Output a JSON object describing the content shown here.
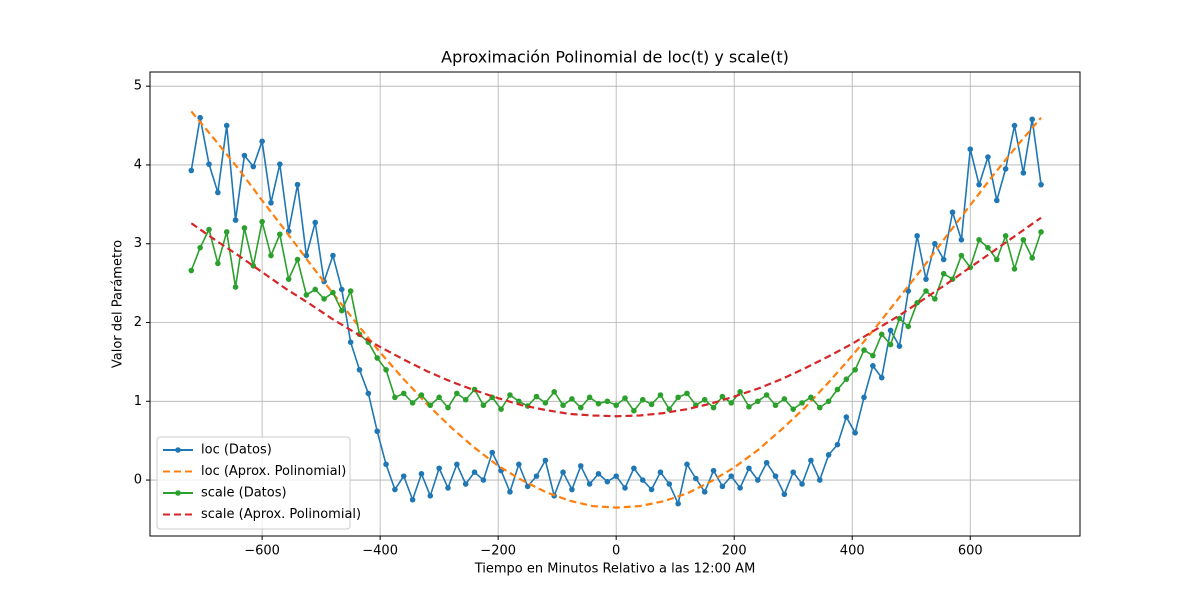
{
  "chart_data": {
    "type": "line",
    "title": "Aproximación Polinomial de loc(t) y scale(t)",
    "xlabel": "Tiempo en Minutos Relativo a las 12:00 AM",
    "ylabel": "Valor del Parámetro",
    "xlim": [
      -790,
      786
    ],
    "ylim": [
      -0.71,
      5.18
    ],
    "xticks": [
      {
        "value": -600,
        "label": "−600"
      },
      {
        "value": -400,
        "label": "−400"
      },
      {
        "value": -200,
        "label": "−200"
      },
      0,
      200,
      400,
      600
    ],
    "yticks": [
      0,
      1,
      2,
      3,
      4,
      5
    ],
    "grid": true,
    "legend": "lower left",
    "series": [
      {
        "name": "loc (Datos)",
        "color": "#1f77b4",
        "marker": "o",
        "linestyle": "-",
        "x": [
          -720,
          -705,
          -690,
          -675,
          -660,
          -645,
          -630,
          -615,
          -600,
          -585,
          -570,
          -555,
          -540,
          -525,
          -510,
          -495,
          -480,
          -465,
          -450,
          -435,
          -420,
          -405,
          -390,
          -375,
          -360,
          -345,
          -330,
          -315,
          -300,
          -285,
          -270,
          -255,
          -240,
          -225,
          -210,
          -195,
          -180,
          -165,
          -150,
          -135,
          -120,
          -105,
          -90,
          -75,
          -60,
          -45,
          -30,
          -15,
          0,
          15,
          30,
          45,
          60,
          75,
          90,
          105,
          120,
          135,
          150,
          165,
          180,
          195,
          210,
          225,
          240,
          255,
          270,
          285,
          300,
          315,
          330,
          345,
          360,
          375,
          390,
          405,
          420,
          435,
          450,
          465,
          480,
          495,
          510,
          525,
          540,
          555,
          570,
          585,
          600,
          615,
          630,
          645,
          660,
          675,
          690,
          705,
          720
        ],
        "values": [
          3.93,
          4.6,
          4.01,
          3.65,
          4.5,
          3.3,
          4.12,
          3.98,
          4.3,
          3.52,
          4.01,
          3.16,
          3.75,
          2.85,
          3.27,
          2.52,
          2.85,
          2.42,
          1.75,
          1.4,
          1.1,
          0.62,
          0.2,
          -0.12,
          0.05,
          -0.25,
          0.08,
          -0.2,
          0.15,
          -0.1,
          0.2,
          -0.05,
          0.1,
          0.0,
          0.35,
          0.12,
          -0.15,
          0.2,
          -0.08,
          0.05,
          0.25,
          -0.2,
          0.1,
          -0.12,
          0.18,
          -0.05,
          0.08,
          -0.02,
          0.05,
          -0.1,
          0.15,
          0.0,
          -0.12,
          0.1,
          -0.05,
          -0.3,
          0.2,
          0.02,
          -0.15,
          0.12,
          -0.08,
          0.05,
          -0.1,
          0.15,
          0.0,
          0.22,
          0.05,
          -0.18,
          0.1,
          -0.05,
          0.25,
          0.0,
          0.32,
          0.45,
          0.8,
          0.6,
          1.05,
          1.45,
          1.3,
          1.9,
          1.7,
          2.4,
          3.1,
          2.55,
          3.0,
          2.8,
          3.4,
          3.05,
          4.2,
          3.75,
          4.1,
          3.55,
          3.95,
          4.5,
          3.9,
          4.58,
          3.75
        ]
      },
      {
        "name": "loc (Aprox. Polinomial)",
        "color": "#ff7f0e",
        "marker": "none",
        "linestyle": "--",
        "x": [
          -720,
          -680,
          -640,
          -600,
          -560,
          -520,
          -480,
          -440,
          -400,
          -360,
          -320,
          -280,
          -240,
          -200,
          -160,
          -120,
          -80,
          -40,
          0,
          40,
          80,
          120,
          160,
          200,
          240,
          280,
          320,
          360,
          400,
          440,
          480,
          520,
          560,
          600,
          640,
          680,
          720
        ],
        "values": [
          4.68,
          4.32,
          3.95,
          3.55,
          3.16,
          2.76,
          2.37,
          1.99,
          1.62,
          1.28,
          0.96,
          0.67,
          0.41,
          0.18,
          0.0,
          -0.15,
          -0.26,
          -0.33,
          -0.35,
          -0.33,
          -0.27,
          -0.17,
          -0.02,
          0.16,
          0.38,
          0.64,
          0.92,
          1.24,
          1.58,
          1.94,
          2.32,
          2.7,
          3.1,
          3.49,
          3.88,
          4.25,
          4.6
        ]
      },
      {
        "name": "scale (Datos)",
        "color": "#2ca02c",
        "marker": "o",
        "linestyle": "-",
        "x": [
          -720,
          -705,
          -690,
          -675,
          -660,
          -645,
          -630,
          -615,
          -600,
          -585,
          -570,
          -555,
          -540,
          -525,
          -510,
          -495,
          -480,
          -465,
          -450,
          -435,
          -420,
          -405,
          -390,
          -375,
          -360,
          -345,
          -330,
          -315,
          -300,
          -285,
          -270,
          -255,
          -240,
          -225,
          -210,
          -195,
          -180,
          -165,
          -150,
          -135,
          -120,
          -105,
          -90,
          -75,
          -60,
          -45,
          -30,
          -15,
          0,
          15,
          30,
          45,
          60,
          75,
          90,
          105,
          120,
          135,
          150,
          165,
          180,
          195,
          210,
          225,
          240,
          255,
          270,
          285,
          300,
          315,
          330,
          345,
          360,
          375,
          390,
          405,
          420,
          435,
          450,
          465,
          480,
          495,
          510,
          525,
          540,
          555,
          570,
          585,
          600,
          615,
          630,
          645,
          660,
          675,
          690,
          705,
          720
        ],
        "values": [
          2.66,
          2.95,
          3.18,
          2.75,
          3.15,
          2.45,
          3.2,
          2.72,
          3.28,
          2.85,
          3.12,
          2.55,
          2.8,
          2.35,
          2.42,
          2.3,
          2.38,
          2.15,
          2.4,
          1.85,
          1.75,
          1.55,
          1.4,
          1.05,
          1.1,
          0.98,
          1.08,
          0.95,
          1.05,
          0.92,
          1.1,
          1.02,
          1.15,
          0.95,
          1.05,
          0.9,
          1.08,
          1.0,
          0.94,
          1.06,
          0.98,
          1.12,
          0.95,
          1.03,
          0.92,
          1.05,
          0.97,
          1.0,
          0.95,
          1.04,
          0.88,
          1.02,
          0.96,
          1.08,
          0.9,
          1.05,
          1.1,
          0.95,
          1.02,
          0.92,
          1.06,
          0.98,
          1.12,
          0.93,
          1.0,
          1.08,
          0.95,
          1.03,
          0.9,
          0.98,
          1.05,
          0.92,
          1.0,
          1.15,
          1.28,
          1.4,
          1.65,
          1.58,
          1.85,
          1.72,
          2.05,
          1.95,
          2.25,
          2.4,
          2.3,
          2.62,
          2.55,
          2.85,
          2.7,
          3.05,
          2.95,
          2.8,
          3.1,
          2.68,
          3.05,
          2.82,
          3.15
        ]
      },
      {
        "name": "scale (Aprox. Polinomial)",
        "color": "#d62728",
        "marker": "none",
        "linestyle": "--",
        "x": [
          -720,
          -680,
          -640,
          -600,
          -560,
          -520,
          -480,
          -440,
          -400,
          -360,
          -320,
          -280,
          -240,
          -200,
          -160,
          -120,
          -80,
          -40,
          0,
          40,
          80,
          120,
          160,
          200,
          240,
          280,
          320,
          360,
          400,
          440,
          480,
          520,
          560,
          600,
          640,
          680,
          720
        ],
        "values": [
          3.26,
          3.05,
          2.85,
          2.64,
          2.43,
          2.24,
          2.04,
          1.86,
          1.69,
          1.53,
          1.38,
          1.25,
          1.14,
          1.04,
          0.95,
          0.89,
          0.84,
          0.82,
          0.81,
          0.82,
          0.85,
          0.9,
          0.97,
          1.06,
          1.16,
          1.28,
          1.42,
          1.57,
          1.73,
          1.91,
          2.09,
          2.29,
          2.49,
          2.7,
          2.91,
          3.12,
          3.33
        ]
      }
    ]
  }
}
